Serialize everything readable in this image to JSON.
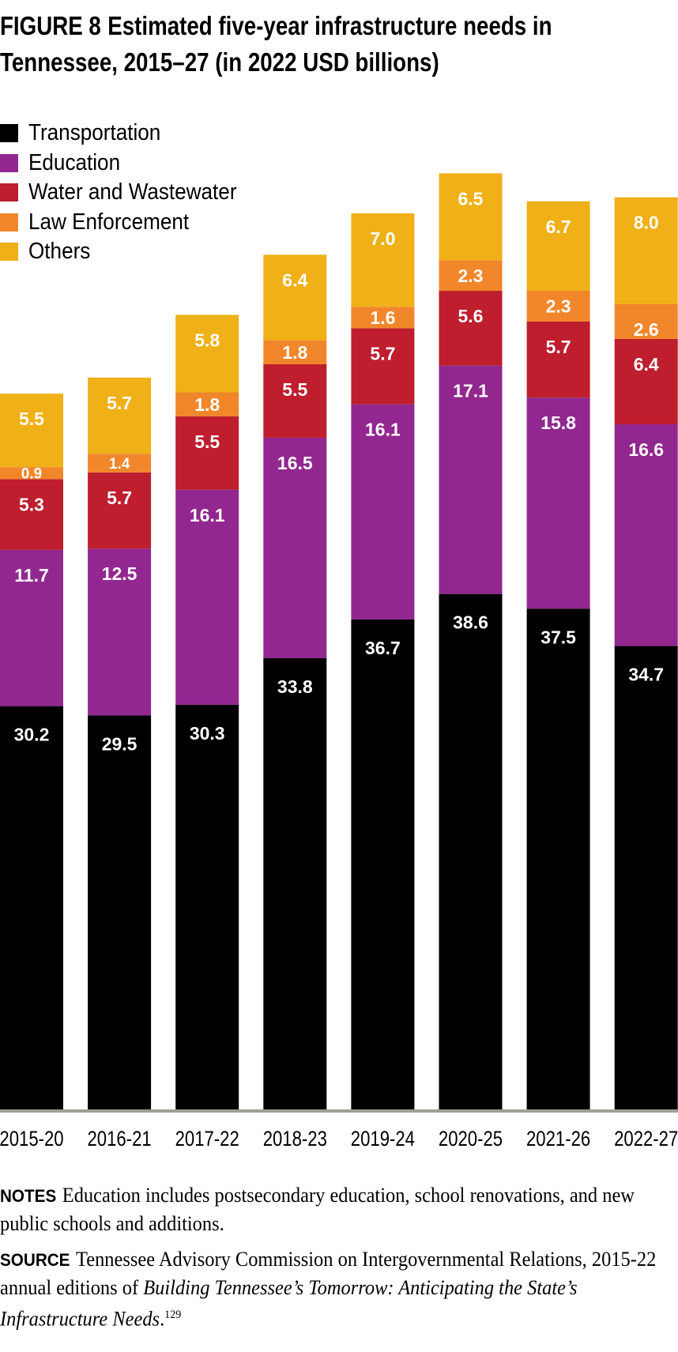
{
  "title": {
    "figure_label": "FIGURE 8",
    "text_line1": "Estimated five-year infrastructure needs in",
    "text_line2": "Tennessee, 2015–27 (in 2022 USD billions)"
  },
  "chart_data": {
    "type": "bar",
    "stacked": true,
    "title": "Estimated five-year infrastructure needs in Tennessee, 2015–27 (in 2022 USD billions)",
    "xlabel": "",
    "ylabel": "",
    "legend_position": "top-left",
    "grid": false,
    "categories": [
      "2015-20",
      "2016-21",
      "2017-22",
      "2018-23",
      "2019-24",
      "2020-25",
      "2021-26",
      "2022-27"
    ],
    "series": [
      {
        "name": "Transportation",
        "color": "#000000",
        "values": [
          30.2,
          29.5,
          30.3,
          33.8,
          36.7,
          38.6,
          37.5,
          34.7
        ]
      },
      {
        "name": "Education",
        "color": "#92278f",
        "values": [
          11.7,
          12.5,
          16.1,
          16.5,
          16.1,
          17.1,
          15.8,
          16.6
        ]
      },
      {
        "name": "Water and Wastewater",
        "color": "#be1e2d",
        "values": [
          5.3,
          5.7,
          5.5,
          5.5,
          5.7,
          5.6,
          5.7,
          6.4
        ]
      },
      {
        "name": "Law Enforcement",
        "color": "#f1862a",
        "values": [
          0.9,
          1.4,
          1.8,
          1.8,
          1.6,
          2.3,
          2.3,
          2.6
        ]
      },
      {
        "name": "Others",
        "color": "#efb018",
        "values": [
          5.5,
          5.7,
          5.8,
          6.4,
          7.0,
          6.5,
          6.7,
          8.0
        ]
      }
    ]
  },
  "notes": {
    "label": "NOTES",
    "text": "Education includes postsecondary education, school renovations, and new public schools and additions."
  },
  "source": {
    "label": "SOURCE",
    "text": "Tennessee Advisory Commission on Intergovernmental Relations, 2015-22 annual editions of",
    "italic": "Building Tennessee’s Tomorrow: Anticipating the State’s Infrastructure Needs",
    "end": ".",
    "footnote": "129"
  }
}
